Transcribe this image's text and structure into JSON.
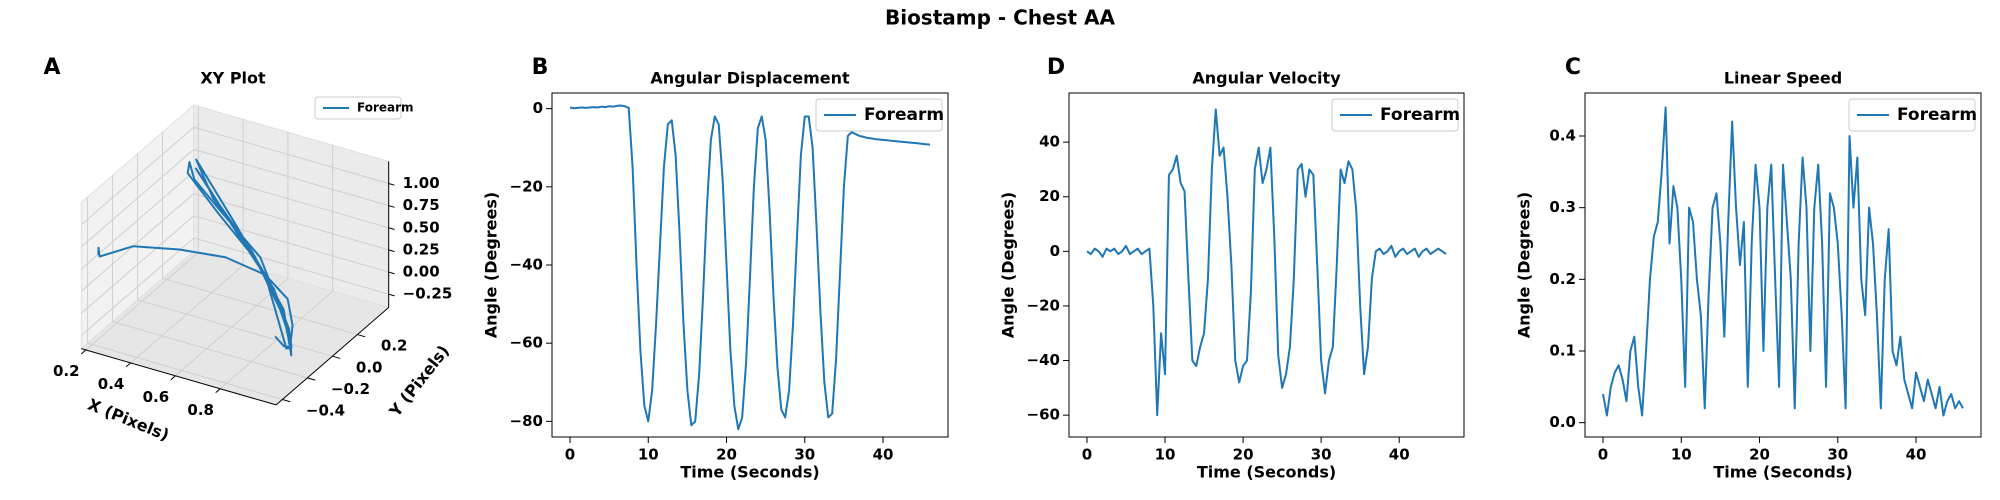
{
  "title": "Biostamp - Chest AA",
  "chart_data": [
    {
      "type": "line3d",
      "panel_label": "A",
      "title": "XY Plot",
      "xlabel": "X (Pixels)",
      "ylabel": "Y (Pixels)",
      "xlim": [
        0.18,
        1.05
      ],
      "ylim": [
        -0.45,
        0.45
      ],
      "zlim": [
        -0.4,
        1.25
      ],
      "xticks": [
        0.2,
        0.4,
        0.6,
        0.8
      ],
      "yticks": [
        {
          "value": -0.4,
          "label": "−0.4"
        },
        {
          "value": -0.2,
          "label": "−0.2"
        },
        {
          "value": 0,
          "label": "0.0"
        },
        0.2
      ],
      "zticks": [
        {
          "value": -0.25,
          "label": "−0.25"
        },
        {
          "value": 0,
          "label": "0.00"
        },
        0.25,
        {
          "value": 0.5,
          "label": "0.50"
        },
        0.75,
        {
          "value": 1,
          "label": "1.00"
        }
      ],
      "legend": "upper right",
      "series": [
        {
          "name": "Forearm",
          "color": "#1f77b4",
          "x": [
            0.2,
            0.19,
            0.21,
            0.2,
            0.3,
            0.45,
            0.6,
            0.75,
            0.85,
            0.9,
            0.92,
            0.88,
            0.7,
            0.5,
            0.35,
            0.3,
            0.32,
            0.5,
            0.7,
            0.88,
            0.93,
            0.9,
            0.75,
            0.55,
            0.38,
            0.33,
            0.45,
            0.65,
            0.82,
            0.92,
            0.95,
            0.86,
            0.66,
            0.46,
            0.34,
            0.4,
            0.6,
            0.8,
            0.9,
            0.94,
            0.9,
            0.85
          ],
          "y": [
            -0.35,
            -0.33,
            -0.36,
            -0.34,
            -0.25,
            -0.15,
            -0.05,
            0,
            0,
            -0.05,
            -0.1,
            -0.05,
            0.05,
            0.1,
            0.15,
            0.2,
            0.15,
            0.08,
            0.02,
            -0.08,
            -0.12,
            -0.1,
            0,
            0.1,
            0.18,
            0.2,
            0.12,
            0.04,
            -0.04,
            -0.1,
            -0.15,
            -0.05,
            0.05,
            0.12,
            0.18,
            0.15,
            0.06,
            -0.02,
            -0.08,
            -0.13,
            -0.12,
            -0.1
          ],
          "z": [
            0.55,
            0.6,
            0.58,
            0.52,
            0.6,
            0.55,
            0.45,
            0.3,
            0.1,
            -0.1,
            -0.2,
            -0.15,
            0.4,
            0.7,
            0.9,
            1.0,
            0.95,
            0.7,
            0.4,
            0,
            -0.25,
            -0.3,
            0.3,
            0.65,
            0.95,
            1.05,
            0.8,
            0.5,
            0.15,
            -0.2,
            -0.28,
            0.05,
            0.45,
            0.8,
            0.98,
            0.9,
            0.55,
            0.2,
            -0.1,
            -0.22,
            -0.25,
            -0.2
          ]
        }
      ]
    },
    {
      "type": "line",
      "panel_label": "B",
      "title": "Angular Displacement",
      "xlabel": "Time (Seconds)",
      "ylabel": "Angle (Degrees)",
      "xlim": [
        -2.3,
        48.3
      ],
      "ylim": [
        -84,
        4
      ],
      "xticks": [
        0,
        10,
        20,
        30,
        40
      ],
      "yticks": [
        {
          "value": -80,
          "label": "−80"
        },
        {
          "value": -60,
          "label": "−60"
        },
        {
          "value": -40,
          "label": "−40"
        },
        {
          "value": -20,
          "label": "−20"
        },
        0
      ],
      "legend": "upper right",
      "x": [
        0,
        0.5,
        1,
        1.5,
        2,
        2.5,
        3,
        3.5,
        4,
        4.5,
        5,
        5.5,
        6,
        6.5,
        7,
        7.5,
        8,
        8.5,
        9,
        9.5,
        10,
        10.5,
        11,
        11.5,
        12,
        12.5,
        13,
        13.5,
        14,
        14.5,
        15,
        15.5,
        16,
        16.5,
        17,
        17.5,
        18,
        18.5,
        19,
        19.5,
        20,
        20.5,
        21,
        21.5,
        22,
        22.5,
        23,
        23.5,
        24,
        24.5,
        25,
        25.5,
        26,
        26.5,
        27,
        27.5,
        28,
        28.5,
        29,
        29.5,
        30,
        30.5,
        31,
        31.5,
        32,
        32.5,
        33,
        33.5,
        34,
        34.5,
        35,
        35.5,
        36,
        36.5,
        37,
        37.5,
        38,
        38.5,
        39,
        39.5,
        40,
        40.5,
        41,
        41.5,
        42,
        42.5,
        43,
        43.5,
        44,
        44.5,
        45,
        45.5,
        46
      ],
      "series": [
        {
          "name": "Forearm",
          "color": "#1f77b4",
          "values": [
            0.3,
            0.1,
            0.2,
            0.3,
            0.2,
            0.3,
            0.4,
            0.3,
            0.5,
            0.4,
            0.6,
            0.5,
            0.7,
            0.8,
            0.6,
            0.2,
            -15,
            -40,
            -62,
            -76,
            -80,
            -72,
            -55,
            -35,
            -15,
            -4,
            -3,
            -12,
            -32,
            -55,
            -72,
            -81,
            -80,
            -68,
            -48,
            -25,
            -8,
            -2,
            -4,
            -18,
            -40,
            -62,
            -76,
            -82,
            -79,
            -65,
            -43,
            -20,
            -5,
            -2,
            -8,
            -26,
            -48,
            -66,
            -77,
            -79,
            -72,
            -55,
            -33,
            -12,
            -2,
            -2,
            -10,
            -30,
            -52,
            -70,
            -79,
            -78,
            -64,
            -42,
            -20,
            -7,
            -6,
            -6.5,
            -7,
            -7.2,
            -7.5,
            -7.6,
            -7.8,
            -7.9,
            -8,
            -8.1,
            -8.2,
            -8.3,
            -8.4,
            -8.5,
            -8.6,
            -8.7,
            -8.8,
            -8.9,
            -9,
            -9.1,
            -9.2
          ]
        }
      ]
    },
    {
      "type": "line",
      "panel_label": "D",
      "title": "Angular Velocity",
      "xlabel": "Time (Seconds)",
      "ylabel": "Angle (Degrees)",
      "xlim": [
        -2.3,
        48.3
      ],
      "ylim": [
        -68,
        58
      ],
      "xticks": [
        0,
        10,
        20,
        30,
        40
      ],
      "yticks": [
        {
          "value": -60,
          "label": "−60"
        },
        {
          "value": -40,
          "label": "−40"
        },
        {
          "value": -20,
          "label": "−20"
        },
        0,
        20,
        40
      ],
      "legend": "upper right",
      "x": [
        0,
        0.5,
        1,
        1.5,
        2,
        2.5,
        3,
        3.5,
        4,
        4.5,
        5,
        5.5,
        6,
        6.5,
        7,
        7.5,
        8,
        8.5,
        9,
        9.5,
        10,
        10.5,
        11,
        11.5,
        12,
        12.5,
        13,
        13.5,
        14,
        14.5,
        15,
        15.5,
        16,
        16.5,
        17,
        17.5,
        18,
        18.5,
        19,
        19.5,
        20,
        20.5,
        21,
        21.5,
        22,
        22.5,
        23,
        23.5,
        24,
        24.5,
        25,
        25.5,
        26,
        26.5,
        27,
        27.5,
        28,
        28.5,
        29,
        29.5,
        30,
        30.5,
        31,
        31.5,
        32,
        32.5,
        33,
        33.5,
        34,
        34.5,
        35,
        35.5,
        36,
        36.5,
        37,
        37.5,
        38,
        38.5,
        39,
        39.5,
        40,
        40.5,
        41,
        41.5,
        42,
        42.5,
        43,
        43.5,
        44,
        44.5,
        45,
        45.5,
        46
      ],
      "series": [
        {
          "name": "Forearm",
          "color": "#1f77b4",
          "values": [
            0,
            -1,
            1,
            0,
            -2,
            1,
            0,
            1,
            -1,
            0,
            2,
            -1,
            0,
            1,
            -1,
            0,
            1,
            -20,
            -60,
            -30,
            -45,
            28,
            30,
            35,
            25,
            22,
            -10,
            -40,
            -42,
            -35,
            -30,
            -10,
            30,
            52,
            35,
            38,
            20,
            -5,
            -40,
            -48,
            -42,
            -40,
            -15,
            30,
            38,
            25,
            30,
            38,
            5,
            -38,
            -50,
            -45,
            -35,
            -10,
            30,
            32,
            20,
            30,
            28,
            -5,
            -40,
            -52,
            -40,
            -35,
            -5,
            30,
            25,
            33,
            30,
            15,
            -20,
            -45,
            -35,
            -10,
            0,
            1,
            -1,
            0,
            2,
            -2,
            0,
            1,
            -1,
            0,
            1,
            -2,
            0,
            1,
            -1,
            0,
            1,
            0,
            -1
          ]
        }
      ]
    },
    {
      "type": "line",
      "panel_label": "C",
      "title": "Linear Speed",
      "xlabel": "Time (Seconds)",
      "ylabel": "Angle (Degrees)",
      "xlim": [
        -2.3,
        48.3
      ],
      "ylim": [
        -0.02,
        0.46
      ],
      "xticks": [
        0,
        10,
        20,
        30,
        40
      ],
      "yticks": [
        {
          "value": 0,
          "label": "0.0"
        },
        0.1,
        0.2,
        0.3,
        0.4
      ],
      "legend": "upper right",
      "x": [
        0,
        0.5,
        1,
        1.5,
        2,
        2.5,
        3,
        3.5,
        4,
        4.5,
        5,
        5.5,
        6,
        6.5,
        7,
        7.5,
        8,
        8.5,
        9,
        9.5,
        10,
        10.5,
        11,
        11.5,
        12,
        12.5,
        13,
        13.5,
        14,
        14.5,
        15,
        15.5,
        16,
        16.5,
        17,
        17.5,
        18,
        18.5,
        19,
        19.5,
        20,
        20.5,
        21,
        21.5,
        22,
        22.5,
        23,
        23.5,
        24,
        24.5,
        25,
        25.5,
        26,
        26.5,
        27,
        27.5,
        28,
        28.5,
        29,
        29.5,
        30,
        30.5,
        31,
        31.5,
        32,
        32.5,
        33,
        33.5,
        34,
        34.5,
        35,
        35.5,
        36,
        36.5,
        37,
        37.5,
        38,
        38.5,
        39,
        39.5,
        40,
        40.5,
        41,
        41.5,
        42,
        42.5,
        43,
        43.5,
        44,
        44.5,
        45,
        45.5,
        46
      ],
      "series": [
        {
          "name": "Forearm",
          "color": "#1f77b4",
          "values": [
            0.04,
            0.01,
            0.05,
            0.07,
            0.08,
            0.06,
            0.03,
            0.1,
            0.12,
            0.05,
            0.01,
            0.1,
            0.2,
            0.26,
            0.28,
            0.35,
            0.44,
            0.25,
            0.33,
            0.3,
            0.2,
            0.05,
            0.3,
            0.28,
            0.2,
            0.15,
            0.02,
            0.18,
            0.3,
            0.32,
            0.25,
            0.12,
            0.28,
            0.42,
            0.3,
            0.22,
            0.28,
            0.05,
            0.25,
            0.36,
            0.3,
            0.1,
            0.3,
            0.36,
            0.2,
            0.05,
            0.36,
            0.28,
            0.2,
            0.02,
            0.25,
            0.37,
            0.3,
            0.1,
            0.3,
            0.36,
            0.25,
            0.05,
            0.32,
            0.3,
            0.25,
            0.15,
            0.02,
            0.4,
            0.3,
            0.37,
            0.2,
            0.15,
            0.3,
            0.25,
            0.15,
            0.02,
            0.2,
            0.27,
            0.1,
            0.08,
            0.12,
            0.06,
            0.04,
            0.02,
            0.07,
            0.05,
            0.03,
            0.06,
            0.04,
            0.02,
            0.05,
            0.01,
            0.03,
            0.04,
            0.02,
            0.03,
            0.02
          ]
        }
      ]
    }
  ]
}
